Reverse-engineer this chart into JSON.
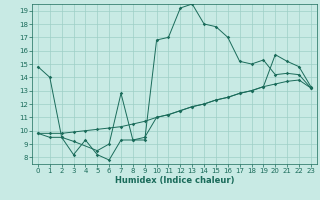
{
  "xlabel": "Humidex (Indice chaleur)",
  "xlim": [
    -0.5,
    23.5
  ],
  "ylim": [
    7.5,
    19.5
  ],
  "yticks": [
    8,
    9,
    10,
    11,
    12,
    13,
    14,
    15,
    16,
    17,
    18,
    19
  ],
  "xticks": [
    0,
    1,
    2,
    3,
    4,
    5,
    6,
    7,
    8,
    9,
    10,
    11,
    12,
    13,
    14,
    15,
    16,
    17,
    18,
    19,
    20,
    21,
    22,
    23
  ],
  "bg_color": "#c8eae4",
  "grid_color": "#9ecfc6",
  "line_color": "#1a6b5a",
  "line1_x": [
    0,
    1,
    2,
    3,
    4,
    5,
    6,
    7,
    8,
    9,
    10,
    11,
    12,
    13,
    14,
    15,
    16,
    17,
    18,
    19,
    20,
    21,
    22,
    23
  ],
  "line1_y": [
    14.8,
    14.0,
    9.5,
    8.2,
    9.3,
    8.2,
    7.8,
    9.3,
    9.3,
    9.3,
    16.8,
    17.0,
    19.2,
    19.5,
    18.0,
    17.8,
    17.0,
    15.2,
    15.0,
    15.3,
    14.2,
    14.3,
    14.2,
    13.2
  ],
  "line2_x": [
    0,
    1,
    2,
    3,
    5,
    6,
    7,
    8,
    9,
    10,
    11,
    12,
    13,
    14,
    15,
    16,
    17,
    18,
    19,
    20,
    21,
    22,
    23
  ],
  "line2_y": [
    9.8,
    9.5,
    9.5,
    9.2,
    8.5,
    9.0,
    12.8,
    9.3,
    9.5,
    11.0,
    11.2,
    11.5,
    11.8,
    12.0,
    12.3,
    12.5,
    12.8,
    13.0,
    13.3,
    13.5,
    13.7,
    13.8,
    13.2
  ],
  "line3_x": [
    0,
    1,
    2,
    3,
    4,
    5,
    6,
    7,
    8,
    9,
    10,
    11,
    12,
    13,
    14,
    15,
    16,
    17,
    18,
    19,
    20,
    21,
    22,
    23
  ],
  "line3_y": [
    9.8,
    9.8,
    9.8,
    9.9,
    10.0,
    10.1,
    10.2,
    10.3,
    10.5,
    10.7,
    11.0,
    11.2,
    11.5,
    11.8,
    12.0,
    12.3,
    12.5,
    12.8,
    13.0,
    13.3,
    15.7,
    15.2,
    14.8,
    13.3
  ],
  "marker_size": 1.8,
  "line_width": 0.7,
  "xlabel_fontsize": 6.0,
  "tick_fontsize": 5.0
}
